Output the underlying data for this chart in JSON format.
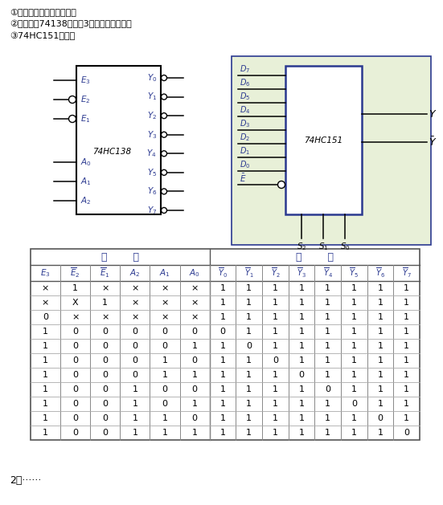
{
  "text_lines": [
    "①仅用二输入与非门实现；",
    "②用译码妗74138（如图3）和与非门实现。",
    "③74HC151实现。"
  ],
  "bottom_text": "2、······",
  "bg_color": "#ffffff",
  "text_color": "#000000",
  "blue_color": "#2b3990",
  "chip_bg": "#e8f0d8",
  "table_data": [
    [
      "×",
      "1",
      "×",
      "×",
      "×",
      "×",
      "1",
      "1",
      "1",
      "1",
      "1",
      "1",
      "1",
      "1"
    ],
    [
      "×",
      "X",
      "1",
      "×",
      "×",
      "×",
      "1",
      "1",
      "1",
      "1",
      "1",
      "1",
      "1",
      "1"
    ],
    [
      "0",
      "×",
      "×",
      "×",
      "×",
      "×",
      "1",
      "1",
      "1",
      "1",
      "1",
      "1",
      "1",
      "1"
    ],
    [
      "1",
      "0",
      "0",
      "0",
      "0",
      "0",
      "0",
      "1",
      "1",
      "1",
      "1",
      "1",
      "1",
      "1"
    ],
    [
      "1",
      "0",
      "0",
      "0",
      "0",
      "1",
      "1",
      "0",
      "1",
      "1",
      "1",
      "1",
      "1",
      "1"
    ],
    [
      "1",
      "0",
      "0",
      "0",
      "1",
      "0",
      "1",
      "1",
      "0",
      "1",
      "1",
      "1",
      "1",
      "1"
    ],
    [
      "1",
      "0",
      "0",
      "0",
      "1",
      "1",
      "1",
      "1",
      "1",
      "0",
      "1",
      "1",
      "1",
      "1"
    ],
    [
      "1",
      "0",
      "0",
      "1",
      "0",
      "0",
      "1",
      "1",
      "1",
      "1",
      "0",
      "1",
      "1",
      "1"
    ],
    [
      "1",
      "0",
      "0",
      "1",
      "0",
      "1",
      "1",
      "1",
      "1",
      "1",
      "1",
      "0",
      "1",
      "1"
    ],
    [
      "1",
      "0",
      "0",
      "1",
      "1",
      "0",
      "1",
      "1",
      "1",
      "1",
      "1",
      "1",
      "0",
      "1"
    ],
    [
      "1",
      "0",
      "0",
      "1",
      "1",
      "1",
      "1",
      "1",
      "1",
      "1",
      "1",
      "1",
      "1",
      "0"
    ]
  ]
}
